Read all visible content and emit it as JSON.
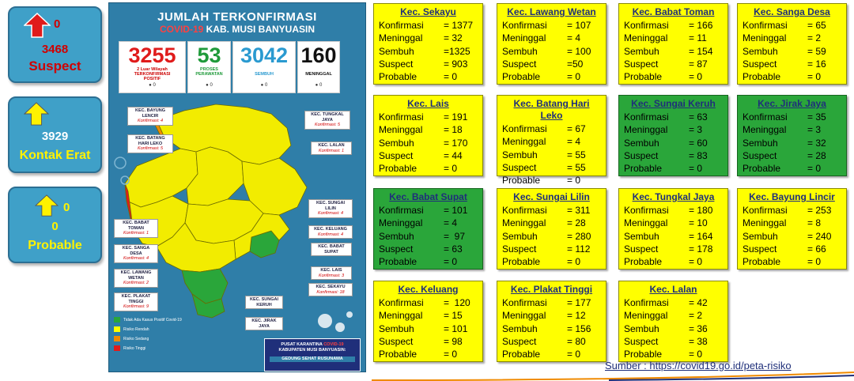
{
  "summary": {
    "suspect": {
      "change": "0",
      "count": "3468",
      "label": "Suspect"
    },
    "kontak_erat": {
      "count": "3929",
      "label": "Kontak Erat"
    },
    "probable": {
      "change": "0",
      "count": "0",
      "label": "Probable"
    }
  },
  "infographic": {
    "title_line1": "JUMLAH TERKONFIRMASI",
    "title_line2_prefix": "COVID-19",
    "title_line2_suffix": "KAB. MUSI BANYUASIN",
    "stats": [
      {
        "value": "3255",
        "label": "2 Luar Wilayah TERKONFIRMASI POSITIF",
        "change": "0",
        "color": "#e01b1b"
      },
      {
        "value": "53",
        "label": "PROSES PERAWATAN",
        "change": "0",
        "color": "#1f9a3a"
      },
      {
        "value": "3042",
        "label": "SEMBUH",
        "change": "0",
        "color": "#2a9ad0"
      },
      {
        "value": "160",
        "label": "MENINGGAL",
        "change": "0",
        "color": "#111111"
      }
    ],
    "callouts": [
      {
        "name": "KEC. BAYUNG LENCIR",
        "konf": "Konfirmasi: 4"
      },
      {
        "name": "KEC. BATANG HARI LEKO",
        "konf": "Konfirmasi: 5"
      },
      {
        "name": "KEC. TUNGKAL JAYA",
        "konf": "Konfirmasi: 5"
      },
      {
        "name": "KEC. LALAN",
        "konf": "Konfirmasi: 1"
      },
      {
        "name": "KEC. SUNGAI LILIN",
        "konf": "Konfirmasi: 4"
      },
      {
        "name": "KEC. KELUANG",
        "konf": "Konfirmasi: 4"
      },
      {
        "name": "KEC. BABAT SUPAT",
        "konf": ""
      },
      {
        "name": "KEC. LAIS",
        "konf": "Konfirmasi: 3"
      },
      {
        "name": "KEC. SEKAYU",
        "konf": "Konfirmasi: 18"
      },
      {
        "name": "KEC. BABAT TOMAN",
        "konf": "Konfirmasi: 1"
      },
      {
        "name": "KEC. SANGA DESA",
        "konf": "Konfirmasi: 4"
      },
      {
        "name": "KEC. LAWANG WETAN",
        "konf": "Konfirmasi: 2"
      },
      {
        "name": "KEC. PLAKAT TINGGI",
        "konf": "Konfirmasi: 9"
      },
      {
        "name": "KEC. SUNGAI KERUH",
        "konf": ""
      },
      {
        "name": "KEC. JIRAK JAYA",
        "konf": ""
      }
    ],
    "legend": [
      {
        "label": "Tidak Ada Kasus Positif Covid-19",
        "color": "#2aa63a"
      },
      {
        "label": "Risiko Rendah",
        "color": "#ffff00"
      },
      {
        "label": "Risiko Sedang",
        "color": "#f08a00"
      },
      {
        "label": "Risiko Tinggi",
        "color": "#e01b1b"
      }
    ],
    "footer_line1_prefix": "PUSAT KARANTINA",
    "footer_line1_red": "COVID-19",
    "footer_line2": "KABUPATEN MUSI BANYUASIN:",
    "footer_line3": "GEDUNG SEHAT RUSUNAWA"
  },
  "labels": {
    "konfirmasi": "Konfirmasi",
    "meninggal": "Meninggal",
    "sembuh": "Sembuh",
    "suspect": "Suspect",
    "probable": "Probable"
  },
  "kecamatan": [
    {
      "name": "Kec. Sekayu",
      "color": "yellow",
      "konfirmasi": "= 1377",
      "meninggal": "= 32",
      "sembuh": "=1325",
      "suspect": "= 903",
      "probable": "= 0"
    },
    {
      "name": "Kec. Lawang Wetan",
      "color": "yellow",
      "konfirmasi": "= 107",
      "meninggal": "= 4",
      "sembuh": "= 100",
      "suspect": "=50",
      "probable": "= 0"
    },
    {
      "name": "Kec. Babat Toman",
      "color": "yellow",
      "konfirmasi": "= 166",
      "meninggal": "= 11",
      "sembuh": "= 154",
      "suspect": "= 87",
      "probable": "= 0"
    },
    {
      "name": "Kec. Sanga Desa",
      "color": "yellow",
      "konfirmasi": "= 65",
      "meninggal": "= 2",
      "sembuh": "= 59",
      "suspect": "= 16",
      "probable": "= 0"
    },
    {
      "name": "Kec. Lais",
      "color": "yellow",
      "konfirmasi": "= 191",
      "meninggal": "= 18",
      "sembuh": "= 170",
      "suspect": "= 44",
      "probable": "= 0"
    },
    {
      "name": "Kec. Batang Hari Leko",
      "color": "yellow",
      "konfirmasi": "= 67",
      "meninggal": "= 4",
      "sembuh": "= 55",
      "suspect": "= 55",
      "probable": "= 0"
    },
    {
      "name": "Kec. Sungai Keruh",
      "color": "green",
      "konfirmasi": "= 63",
      "meninggal": "= 3",
      "sembuh": "= 60",
      "suspect": "= 83",
      "probable": "= 0"
    },
    {
      "name": "Kec. Jirak Jaya",
      "color": "green",
      "konfirmasi": "= 35",
      "meninggal": "= 3",
      "sembuh": "= 32",
      "suspect": "= 28",
      "probable": "= 0"
    },
    {
      "name": "Kec. Babat Supat",
      "color": "green",
      "konfirmasi": "= 101",
      "meninggal": "= 4",
      "sembuh": "=  97",
      "suspect": "= 63",
      "probable": "= 0"
    },
    {
      "name": "Kec. Sungai Lilin",
      "color": "yellow",
      "konfirmasi": "= 311",
      "meninggal": "= 28",
      "sembuh": "= 280",
      "suspect": "= 112",
      "probable": "= 0"
    },
    {
      "name": "Kec. Tungkal Jaya",
      "color": "yellow",
      "konfirmasi": "= 180",
      "meninggal": "= 10",
      "sembuh": "= 164",
      "suspect": "= 178",
      "probable": "= 0"
    },
    {
      "name": "Kec. Bayung Lincir",
      "color": "yellow",
      "konfirmasi": "= 253",
      "meninggal": "= 8",
      "sembuh": "= 240",
      "suspect": "= 66",
      "probable": "= 0"
    },
    {
      "name": "Kec. Keluang",
      "color": "yellow",
      "konfirmasi": "=  120",
      "meninggal": "= 15",
      "sembuh": "= 101",
      "suspect": "= 98",
      "probable": "= 0"
    },
    {
      "name": "Kec. Plakat Tinggi",
      "color": "yellow",
      "konfirmasi": "= 177",
      "meninggal": "= 12",
      "sembuh": "= 156",
      "suspect": "= 80",
      "probable": "= 0"
    },
    {
      "name": "Kec. Lalan",
      "color": "yellow",
      "konfirmasi": "= 42",
      "meninggal": "= 2",
      "sembuh": "= 36",
      "suspect": "= 38",
      "probable": "= 0"
    }
  ],
  "source": "Sumber : https://covid19.go.id/peta-risiko"
}
